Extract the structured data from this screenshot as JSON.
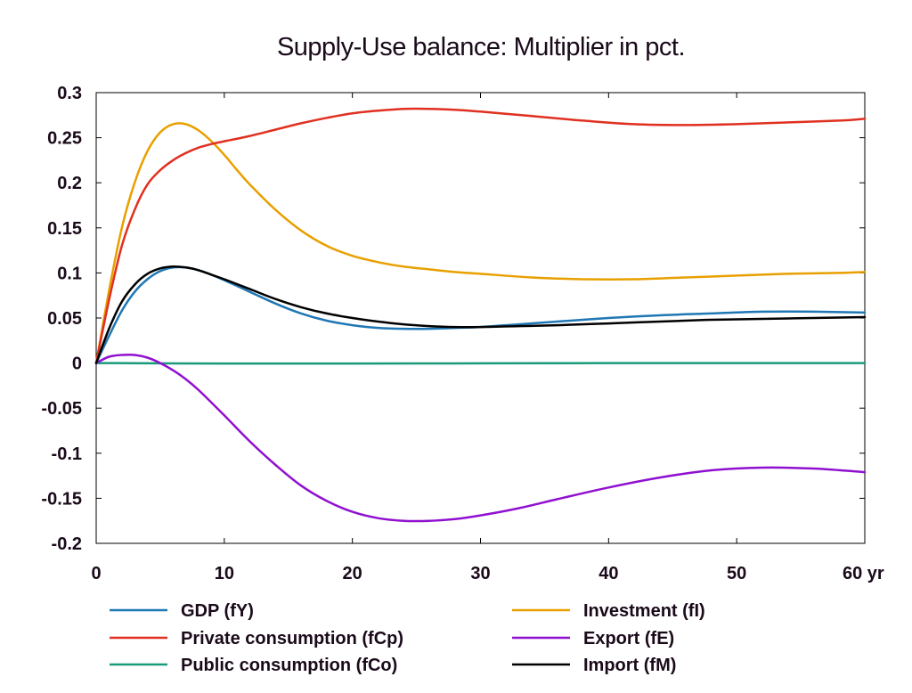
{
  "chart_data": {
    "type": "line",
    "title": "Supply-Use balance: Multiplier in pct.",
    "x_unit_label": "yr",
    "xlim": [
      0,
      60
    ],
    "ylim": [
      -0.2,
      0.3
    ],
    "x_ticks": [
      0,
      10,
      20,
      30,
      40,
      50,
      60
    ],
    "x_tick_labels": [
      "0",
      "10",
      "20",
      "30",
      "40",
      "50",
      "60 yr"
    ],
    "y_ticks": [
      0.3,
      0.25,
      0.2,
      0.15,
      0.1,
      0.05,
      0,
      -0.05,
      -0.1,
      -0.15,
      -0.2
    ],
    "y_tick_labels": [
      "0.3",
      "0.25",
      "0.2",
      "0.15",
      "0.1",
      "0.05",
      "0",
      "-0.05",
      "-0.1",
      "-0.15",
      "-0.2"
    ],
    "grid": false,
    "legend_position": "bottom",
    "series": [
      {
        "name": "GDP (fY)",
        "color": "#1f77b4",
        "x": [
          0,
          1,
          2,
          3,
          4,
          5,
          6,
          7,
          8,
          9,
          10,
          12,
          14,
          16,
          18,
          20,
          22,
          24,
          26,
          28,
          30,
          33,
          36,
          40,
          44,
          48,
          52,
          56,
          60
        ],
        "y": [
          0,
          0.03,
          0.058,
          0.079,
          0.093,
          0.102,
          0.106,
          0.106,
          0.103,
          0.098,
          0.092,
          0.079,
          0.066,
          0.055,
          0.047,
          0.042,
          0.039,
          0.038,
          0.038,
          0.039,
          0.04,
          0.043,
          0.046,
          0.05,
          0.053,
          0.055,
          0.057,
          0.057,
          0.056
        ]
      },
      {
        "name": "Private consumption (fCp)",
        "color": "#e03020",
        "x": [
          0,
          1,
          2,
          3,
          4,
          5,
          6,
          7,
          8,
          9,
          10,
          12,
          14,
          16,
          18,
          20,
          22,
          24,
          26,
          28,
          30,
          34,
          38,
          42,
          46,
          50,
          54,
          58,
          60
        ],
        "y": [
          0,
          0.07,
          0.13,
          0.17,
          0.198,
          0.214,
          0.225,
          0.233,
          0.239,
          0.243,
          0.246,
          0.252,
          0.259,
          0.266,
          0.272,
          0.277,
          0.28,
          0.282,
          0.282,
          0.281,
          0.279,
          0.274,
          0.269,
          0.265,
          0.264,
          0.265,
          0.267,
          0.269,
          0.271
        ]
      },
      {
        "name": "Public consumption (fCo)",
        "color": "#1a9a7a",
        "x": [
          0,
          10,
          20,
          30,
          40,
          50,
          60
        ],
        "y": [
          0,
          -0.0005,
          -0.0005,
          -0.0003,
          0,
          0,
          0
        ]
      },
      {
        "name": "Investment (fI)",
        "color": "#e8a000",
        "x": [
          0,
          1,
          2,
          3,
          4,
          5,
          6,
          7,
          8,
          9,
          10,
          11,
          12,
          14,
          16,
          18,
          20,
          22,
          24,
          26,
          28,
          30,
          34,
          38,
          42,
          46,
          50,
          54,
          58,
          60
        ],
        "y": [
          0,
          0.08,
          0.15,
          0.2,
          0.235,
          0.256,
          0.265,
          0.265,
          0.258,
          0.246,
          0.231,
          0.214,
          0.198,
          0.17,
          0.147,
          0.13,
          0.119,
          0.112,
          0.107,
          0.104,
          0.101,
          0.099,
          0.095,
          0.093,
          0.093,
          0.095,
          0.097,
          0.099,
          0.1,
          0.101
        ]
      },
      {
        "name": "Export (fE)",
        "color": "#9010d0",
        "x": [
          0,
          1,
          2,
          3,
          4,
          5,
          6,
          7,
          8,
          10,
          12,
          14,
          16,
          18,
          20,
          22,
          24,
          26,
          28,
          30,
          33,
          36,
          40,
          44,
          48,
          52,
          56,
          60
        ],
        "y": [
          0,
          0.007,
          0.009,
          0.009,
          0.006,
          0.0,
          -0.008,
          -0.018,
          -0.03,
          -0.058,
          -0.087,
          -0.113,
          -0.136,
          -0.153,
          -0.165,
          -0.172,
          -0.175,
          -0.175,
          -0.173,
          -0.169,
          -0.161,
          -0.151,
          -0.138,
          -0.127,
          -0.119,
          -0.116,
          -0.117,
          -0.121
        ]
      },
      {
        "name": "Import (fM)",
        "color": "#000000",
        "x": [
          0,
          1,
          2,
          3,
          4,
          5,
          6,
          7,
          8,
          9,
          10,
          12,
          14,
          16,
          18,
          20,
          22,
          24,
          26,
          28,
          30,
          33,
          36,
          40,
          44,
          48,
          52,
          56,
          60
        ],
        "y": [
          0,
          0.038,
          0.068,
          0.087,
          0.099,
          0.105,
          0.107,
          0.106,
          0.103,
          0.098,
          0.093,
          0.082,
          0.071,
          0.062,
          0.055,
          0.05,
          0.046,
          0.043,
          0.041,
          0.04,
          0.04,
          0.041,
          0.042,
          0.044,
          0.046,
          0.048,
          0.049,
          0.05,
          0.051
        ]
      }
    ]
  }
}
